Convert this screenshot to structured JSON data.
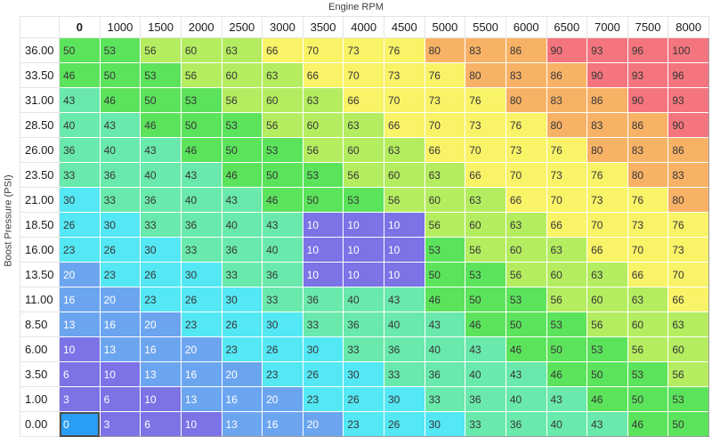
{
  "chart_data": {
    "type": "heatmap",
    "xlabel": "Engine RPM",
    "ylabel": "Boost Pressure (PSI)",
    "columns": [
      "0",
      "1000",
      "1500",
      "2000",
      "2500",
      "3000",
      "3500",
      "4000",
      "4500",
      "5000",
      "5500",
      "6000",
      "6500",
      "7000",
      "7500",
      "8000"
    ],
    "rows": [
      "36.00",
      "33.50",
      "31.00",
      "28.50",
      "26.00",
      "23.50",
      "21.00",
      "18.50",
      "16.00",
      "13.50",
      "11.00",
      "8.50",
      "6.00",
      "3.50",
      "1.00",
      "0.00"
    ],
    "values": [
      [
        50,
        53,
        56,
        60,
        63,
        66,
        70,
        73,
        76,
        80,
        83,
        86,
        90,
        93,
        96,
        100
      ],
      [
        46,
        50,
        53,
        56,
        60,
        63,
        66,
        70,
        73,
        76,
        80,
        83,
        86,
        90,
        93,
        96
      ],
      [
        43,
        46,
        50,
        53,
        56,
        60,
        63,
        66,
        70,
        73,
        76,
        80,
        83,
        86,
        90,
        93
      ],
      [
        40,
        43,
        46,
        50,
        53,
        56,
        60,
        63,
        66,
        70,
        73,
        76,
        80,
        83,
        86,
        90
      ],
      [
        36,
        40,
        43,
        46,
        50,
        53,
        56,
        60,
        63,
        66,
        70,
        73,
        76,
        80,
        83,
        86
      ],
      [
        33,
        36,
        40,
        43,
        46,
        50,
        53,
        56,
        60,
        63,
        66,
        70,
        73,
        76,
        80,
        83
      ],
      [
        30,
        33,
        36,
        40,
        43,
        46,
        50,
        53,
        56,
        60,
        63,
        66,
        70,
        73,
        76,
        80
      ],
      [
        26,
        30,
        33,
        36,
        40,
        43,
        10,
        10,
        10,
        56,
        60,
        63,
        66,
        70,
        73,
        76
      ],
      [
        23,
        26,
        30,
        33,
        36,
        40,
        10,
        10,
        10,
        53,
        56,
        60,
        63,
        66,
        70,
        73
      ],
      [
        20,
        23,
        26,
        30,
        33,
        36,
        10,
        10,
        10,
        50,
        53,
        56,
        60,
        63,
        66,
        70
      ],
      [
        16,
        20,
        23,
        26,
        30,
        33,
        36,
        40,
        43,
        46,
        50,
        53,
        56,
        60,
        63,
        66
      ],
      [
        13,
        16,
        20,
        23,
        26,
        30,
        33,
        36,
        40,
        43,
        46,
        50,
        53,
        56,
        60,
        63
      ],
      [
        10,
        13,
        16,
        20,
        23,
        26,
        30,
        33,
        36,
        40,
        43,
        46,
        50,
        53,
        56,
        60
      ],
      [
        6,
        10,
        13,
        16,
        20,
        23,
        26,
        30,
        33,
        36,
        40,
        43,
        46,
        50,
        53,
        56
      ],
      [
        3,
        6,
        10,
        13,
        16,
        20,
        23,
        26,
        30,
        33,
        36,
        40,
        43,
        46,
        50,
        53
      ],
      [
        0,
        3,
        6,
        10,
        13,
        16,
        20,
        23,
        26,
        30,
        33,
        36,
        40,
        43,
        46,
        50
      ]
    ],
    "bold_column_header": "0",
    "bold_row_header": "0.00",
    "selected_cell": {
      "row_index": 15,
      "col_index": 0,
      "row": "0.00",
      "column": "0",
      "value": 0
    },
    "selected_bg": "#2a9df4",
    "selected_text": "#ffffff",
    "color_bands": [
      {
        "max": 10,
        "bg": "#7b73e6",
        "text": "#ffffff"
      },
      {
        "max": 20,
        "bg": "#6ca5ef",
        "text": "#ffffff"
      },
      {
        "max": 30,
        "bg": "#54e7f4",
        "text": "#363636"
      },
      {
        "max": 43,
        "bg": "#69e9ab",
        "text": "#363636"
      },
      {
        "max": 53,
        "bg": "#5ce35c",
        "text": "#363636"
      },
      {
        "max": 63,
        "bg": "#b5ed60",
        "text": "#363636"
      },
      {
        "max": 76,
        "bg": "#f9f368",
        "text": "#363636"
      },
      {
        "max": 86,
        "bg": "#f8b266",
        "text": "#363636"
      },
      {
        "max": 100,
        "bg": "#f4757d",
        "text": "#363636"
      }
    ]
  }
}
